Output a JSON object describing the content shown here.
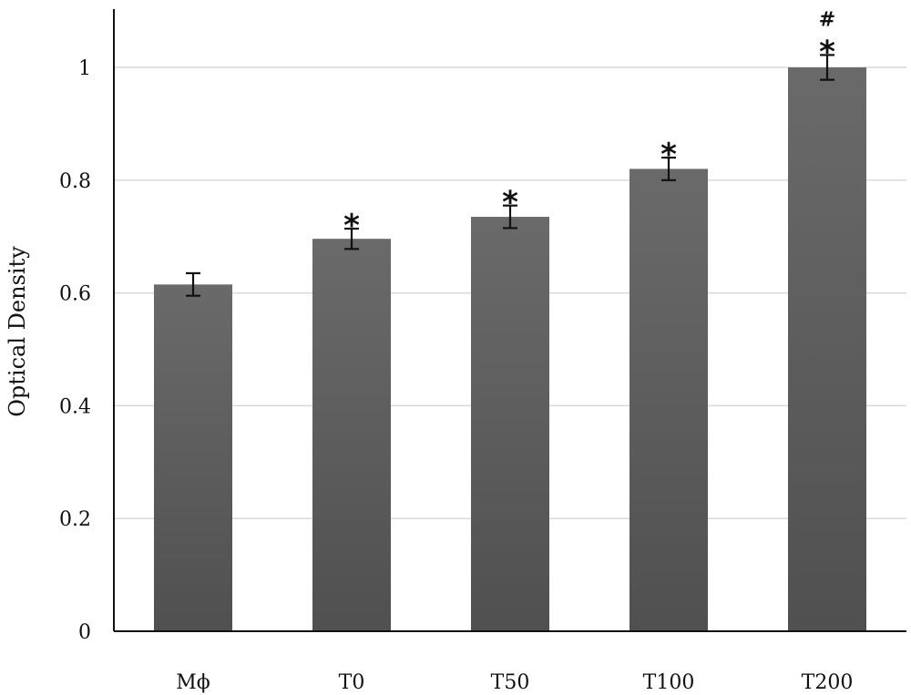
{
  "chart_data": {
    "type": "bar",
    "title": "",
    "xlabel": "",
    "ylabel": "Optical Density",
    "ylim": [
      0,
      1.1
    ],
    "yticks": [
      0,
      0.2,
      0.4,
      0.6,
      0.8,
      1
    ],
    "ytick_labels": [
      "0",
      "0.2",
      "0.4",
      "0.6",
      "0.8",
      "1"
    ],
    "grid": true,
    "categories": [
      "Mϕ",
      "T0",
      "T50",
      "T100",
      "T200"
    ],
    "values": [
      0.615,
      0.696,
      0.735,
      0.82,
      1.0
    ],
    "errors": [
      0.02,
      0.018,
      0.02,
      0.02,
      0.022
    ],
    "annotations": [
      [],
      [
        "*"
      ],
      [
        "*"
      ],
      [
        "*"
      ],
      [
        "#",
        "*"
      ]
    ],
    "bar_color": "#5f5f5f"
  }
}
